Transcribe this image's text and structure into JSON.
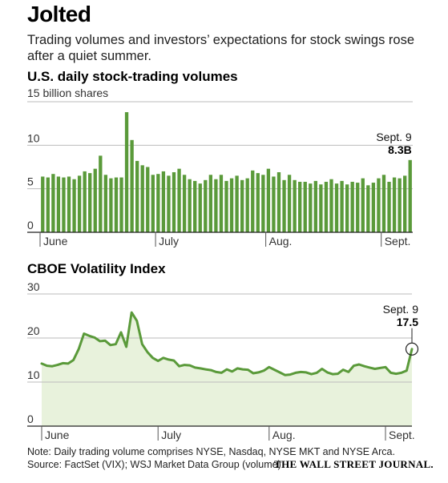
{
  "headline": "Jolted",
  "subtitle": "Trading volumes and investors’ expectations for stock swings rose after a quiet summer.",
  "note": "Note: Daily trading volume comprises NYSE, Nasdaq, NYSE MKT and NYSE Arca.",
  "source": "Source: FactSet (VIX); WSJ Market Data Group (volume)",
  "credit": "THE WALL STREET JOURNAL.",
  "colors": {
    "bar": "#5a9a3a",
    "line": "#5a9a3a",
    "area": "#e8f2dc",
    "axis": "#555555",
    "grid": "#bbbbbb"
  },
  "chart_data": [
    {
      "type": "bar",
      "title": "U.S. daily stock-trading volumes",
      "unit_label": "15 billion shares",
      "ylim": [
        0,
        15
      ],
      "yticks": [
        0,
        5,
        10
      ],
      "month_labels": [
        "June",
        "July",
        "Aug.",
        "Sept."
      ],
      "month_start_index": [
        0,
        22,
        43,
        65
      ],
      "callout": {
        "label": "Sept. 9",
        "value_label": "8.3B"
      },
      "values": [
        6.4,
        6.3,
        6.7,
        6.4,
        6.3,
        6.4,
        6.1,
        6.5,
        7.0,
        6.8,
        7.3,
        8.8,
        6.6,
        6.2,
        6.3,
        6.3,
        13.8,
        10.6,
        8.2,
        7.7,
        7.5,
        6.6,
        6.7,
        7.0,
        6.5,
        6.9,
        7.3,
        6.6,
        6.1,
        5.9,
        5.6,
        6.0,
        6.6,
        6.1,
        6.6,
        5.9,
        6.2,
        6.5,
        6.0,
        6.2,
        7.1,
        6.8,
        6.6,
        7.3,
        6.4,
        6.9,
        6.0,
        6.6,
        6.0,
        5.8,
        5.8,
        5.6,
        5.9,
        5.5,
        5.8,
        6.1,
        5.6,
        5.9,
        5.5,
        5.8,
        5.7,
        6.2,
        5.4,
        5.7,
        6.2,
        6.6,
        5.8,
        6.3,
        6.2,
        6.5,
        8.3
      ]
    },
    {
      "type": "line",
      "title": "CBOE Volatility Index",
      "ylim": [
        0,
        30
      ],
      "yticks": [
        0,
        10,
        20,
        30
      ],
      "month_labels": [
        "June",
        "July",
        "Aug.",
        "Sept."
      ],
      "month_start_index": [
        0,
        22,
        43,
        65
      ],
      "callout": {
        "label": "Sept. 9",
        "value_label": "17.5"
      },
      "values": [
        14.2,
        13.7,
        13.6,
        13.9,
        14.3,
        14.2,
        15.0,
        17.5,
        21.0,
        20.5,
        20.1,
        19.3,
        19.4,
        18.4,
        18.6,
        21.3,
        18.0,
        25.8,
        23.9,
        18.6,
        16.8,
        15.5,
        14.8,
        15.5,
        15.1,
        14.9,
        13.6,
        13.9,
        13.8,
        13.3,
        13.1,
        12.9,
        12.7,
        12.3,
        12.1,
        12.9,
        12.4,
        13.1,
        12.9,
        12.8,
        12.0,
        12.2,
        12.6,
        13.4,
        12.8,
        12.2,
        11.6,
        11.7,
        12.1,
        12.3,
        12.2,
        11.8,
        12.1,
        13.0,
        12.2,
        11.8,
        11.9,
        12.8,
        12.3,
        13.7,
        14.0,
        13.6,
        13.3,
        13.0,
        13.2,
        13.4,
        12.1,
        11.9,
        12.1,
        12.6,
        17.5
      ]
    }
  ]
}
